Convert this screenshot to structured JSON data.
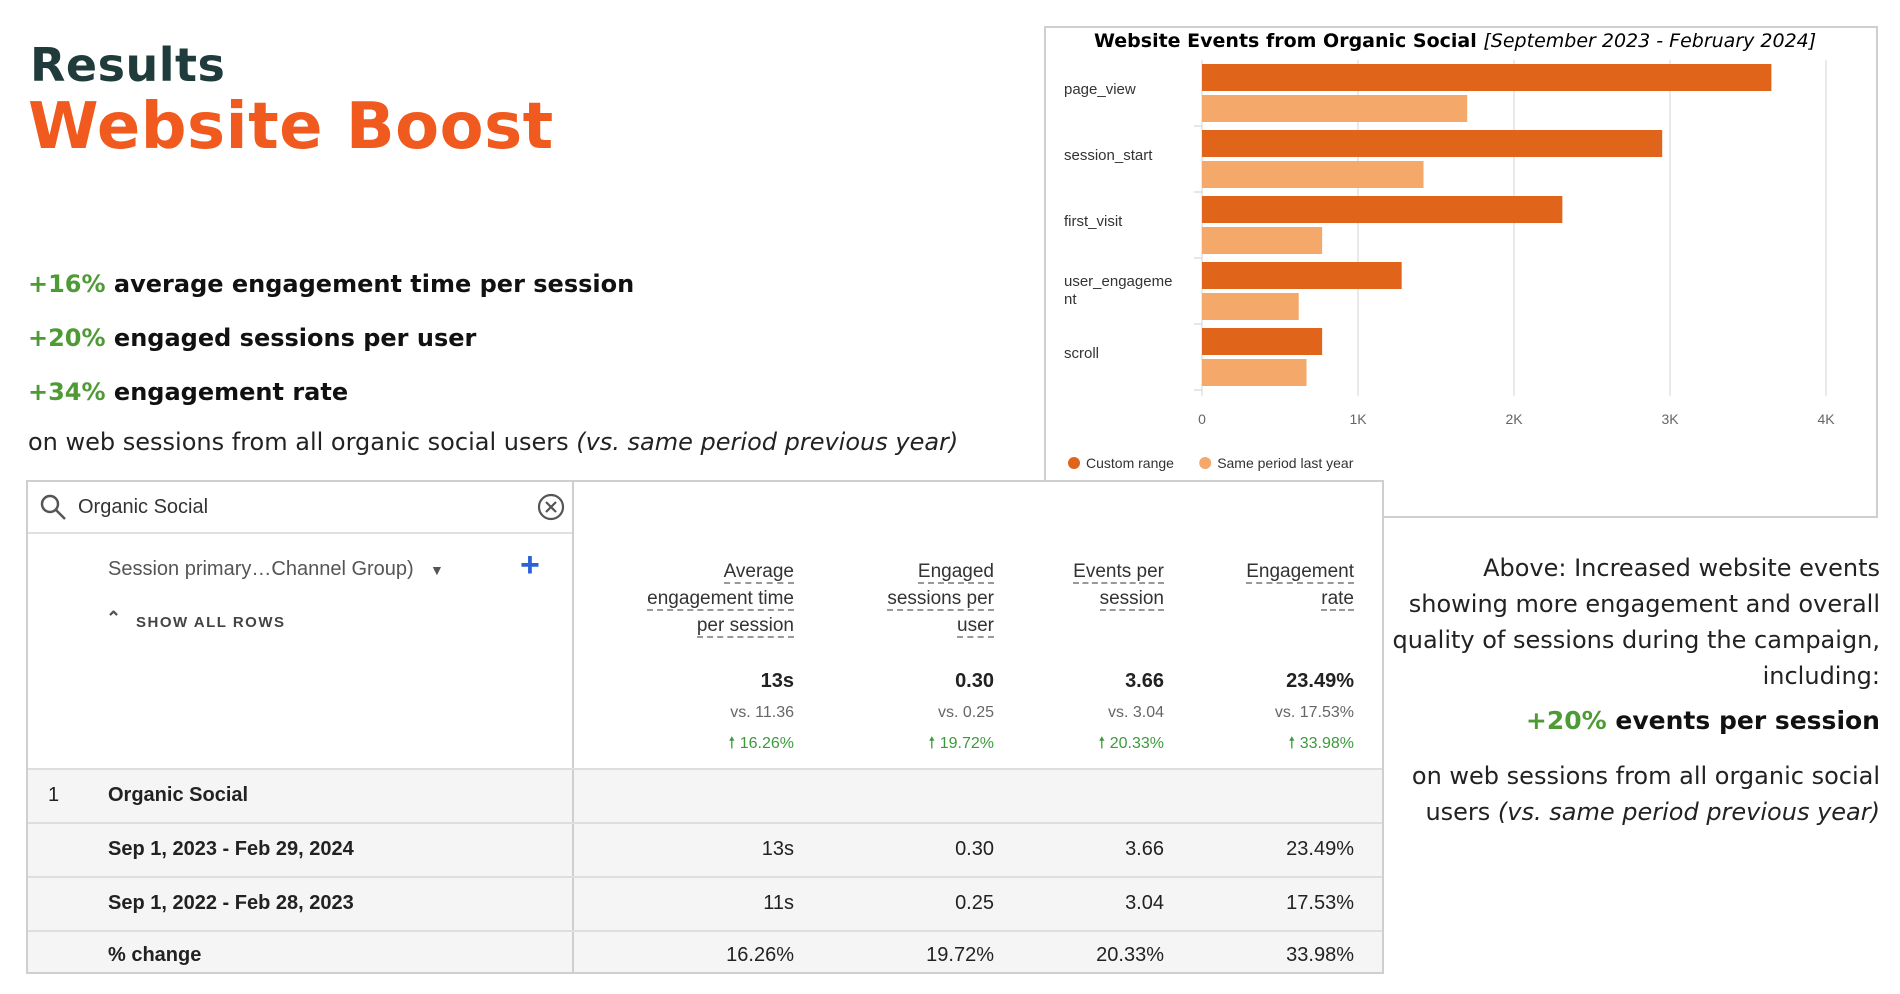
{
  "header": {
    "results": "Results",
    "title": "Website Boost"
  },
  "stats": [
    {
      "pct": "+16%",
      "label": "average engagement time per session"
    },
    {
      "pct": "+20%",
      "label": "engaged sessions per user"
    },
    {
      "pct": "+34%",
      "label": "engagement rate"
    }
  ],
  "stats_note": {
    "text": "on web sessions from all organic social users ",
    "italic": "(vs. same period previous year)"
  },
  "chart_data": {
    "type": "bar",
    "orientation": "horizontal",
    "title": "Website Events from Organic Social",
    "subtitle": "[September 2023 - February 2024]",
    "categories": [
      "page_view",
      "session_start",
      "first_visit",
      "user_engagement",
      "scroll"
    ],
    "category_labels": [
      [
        "page_view"
      ],
      [
        "session_start"
      ],
      [
        "first_visit"
      ],
      [
        "user_engageme",
        "nt"
      ],
      [
        "scroll"
      ]
    ],
    "series": [
      {
        "name": "Custom range",
        "color": "#e0651a",
        "values": [
          3650,
          2950,
          2310,
          1280,
          770
        ]
      },
      {
        "name": "Same period last year",
        "color": "#f4a86a",
        "values": [
          1700,
          1420,
          770,
          620,
          670
        ]
      }
    ],
    "xlim": [
      0,
      4000
    ],
    "xticks": [
      "0",
      "1K",
      "2K",
      "3K",
      "4K"
    ],
    "xtick_values": [
      0,
      1000,
      2000,
      3000,
      4000
    ],
    "grid": true,
    "legend": "bottom-left"
  },
  "report": {
    "search_value": "Organic Social",
    "dimension": "Session primary…Channel Group)",
    "show_rows": "SHOW ALL ROWS",
    "columns": [
      {
        "lines": [
          "Average",
          "engagement time",
          "per session"
        ],
        "total": "13s",
        "vs": "vs. 11.36",
        "change": "16.26%"
      },
      {
        "lines": [
          "Engaged",
          "sessions per",
          "user"
        ],
        "total": "0.30",
        "vs": "vs. 0.25",
        "change": "19.72%"
      },
      {
        "lines": [
          "Events per",
          "session"
        ],
        "total": "3.66",
        "vs": "vs. 3.04",
        "change": "20.33%"
      },
      {
        "lines": [
          "Engagement",
          "rate"
        ],
        "total": "23.49%",
        "vs": "vs. 17.53%",
        "change": "33.98%"
      }
    ],
    "group_row": {
      "index": "1",
      "label": "Organic Social"
    },
    "rows": [
      {
        "label": "Sep 1, 2023 - Feb 29, 2024",
        "values": [
          "13s",
          "0.30",
          "3.66",
          "23.49%"
        ]
      },
      {
        "label": "Sep 1, 2022 - Feb 28, 2023",
        "values": [
          "11s",
          "0.25",
          "3.04",
          "17.53%"
        ]
      },
      {
        "label": "% change",
        "values": [
          "16.26%",
          "19.72%",
          "20.33%",
          "33.98%"
        ]
      }
    ]
  },
  "right": {
    "note": "Above: Increased website events showing more engagement and overall quality of sessions during the campaign, including:",
    "stat_pct": "+20%",
    "stat_label": "events per session",
    "note2": "on web sessions from all organic social users ",
    "note2_italic": "(vs. same period previous year)"
  },
  "colors": {
    "accent": "#f05a1e",
    "positive": "#4e9a35",
    "link": "#2a63d6"
  }
}
